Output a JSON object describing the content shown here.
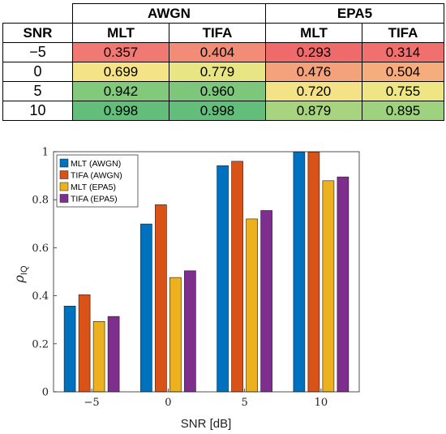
{
  "table": {
    "corner": "SNR",
    "groups": [
      "AWGN",
      "EPA5"
    ],
    "subheaders": [
      "MLT",
      "TIFA",
      "MLT",
      "TIFA"
    ],
    "rows": [
      {
        "snr": "−5",
        "cells": [
          {
            "v": "0.357",
            "color": "#f07a73"
          },
          {
            "v": "0.404",
            "color": "#f28c76"
          },
          {
            "v": "0.293",
            "color": "#ef6b6b"
          },
          {
            "v": "0.314",
            "color": "#f0706e"
          }
        ]
      },
      {
        "snr": "0",
        "cells": [
          {
            "v": "0.699",
            "color": "#f5e487"
          },
          {
            "v": "0.779",
            "color": "#e8e584"
          },
          {
            "v": "0.476",
            "color": "#f4a27b"
          },
          {
            "v": "0.504",
            "color": "#f5ad7e"
          }
        ]
      },
      {
        "snr": "5",
        "cells": [
          {
            "v": "0.942",
            "color": "#82c97c"
          },
          {
            "v": "0.960",
            "color": "#7cc77b"
          },
          {
            "v": "0.720",
            "color": "#f3e386"
          },
          {
            "v": "0.755",
            "color": "#eee585"
          }
        ]
      },
      {
        "snr": "10",
        "cells": [
          {
            "v": "0.998",
            "color": "#63be7b"
          },
          {
            "v": "0.998",
            "color": "#63be7b"
          },
          {
            "v": "0.879",
            "color": "#a8d47f"
          },
          {
            "v": "0.895",
            "color": "#9fd27e"
          }
        ]
      }
    ]
  },
  "chart_data": {
    "type": "bar",
    "categories": [
      "−5",
      "0",
      "5",
      "10"
    ],
    "xlabel": "SNR [dB]",
    "ylabel": "ρ",
    "ylabel_sub": "IQ",
    "ylim": [
      0,
      1
    ],
    "yticks": [
      "0",
      "0.2",
      "0.4",
      "0.6",
      "0.8",
      "1"
    ],
    "legend_position": "top-left",
    "series": [
      {
        "name": "MLT (AWGN)",
        "color": "#0072bd",
        "values": [
          0.357,
          0.699,
          0.942,
          0.998
        ]
      },
      {
        "name": "TIFA (AWGN)",
        "color": "#d95319",
        "values": [
          0.404,
          0.779,
          0.96,
          0.998
        ]
      },
      {
        "name": "MLT (EPA5)",
        "color": "#edb120",
        "values": [
          0.293,
          0.476,
          0.72,
          0.879
        ]
      },
      {
        "name": "TIFA (EPA5)",
        "color": "#7e2f8e",
        "values": [
          0.314,
          0.504,
          0.755,
          0.895
        ]
      }
    ]
  }
}
